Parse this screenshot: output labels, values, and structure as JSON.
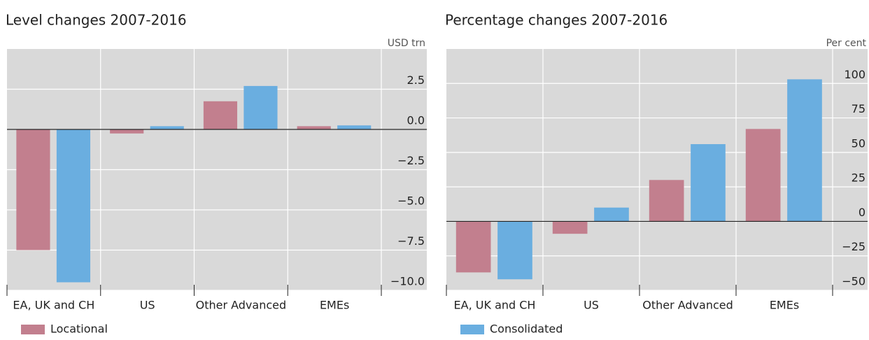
{
  "chart_data": [
    {
      "type": "bar",
      "title": "Level changes 2007-2016",
      "y_unit": "USD trn",
      "categories": [
        "EA, UK and CH",
        "US",
        "Other Advanced",
        "EMEs"
      ],
      "series": [
        {
          "name": "Locational",
          "color": "#c27f8e",
          "values": [
            -7.5,
            -0.25,
            1.75,
            0.2
          ]
        },
        {
          "name": "Consolidated",
          "color": "#6aaee0",
          "values": [
            -9.5,
            0.2,
            2.7,
            0.25
          ]
        }
      ],
      "ylim": [
        -10,
        5
      ],
      "yticks": [
        2.5,
        {
          "value": 0,
          "label": "0.0"
        },
        {
          "value": -2.5,
          "label": "−2.5"
        },
        {
          "value": -5,
          "label": "−5.0"
        },
        {
          "value": -7.5,
          "label": "−7.5"
        },
        {
          "value": -10,
          "label": "−10.0"
        }
      ],
      "grid": true,
      "legend_series": [
        0
      ]
    },
    {
      "type": "bar",
      "title": "Percentage changes 2007-2016",
      "y_unit": "Per cent",
      "categories": [
        "EA, UK and CH",
        "US",
        "Other Advanced",
        "EMEs"
      ],
      "series": [
        {
          "name": "Locational",
          "color": "#c27f8e",
          "values": [
            -37,
            -9,
            30,
            67
          ]
        },
        {
          "name": "Consolidated",
          "color": "#6aaee0",
          "values": [
            -42,
            10,
            56,
            103
          ]
        }
      ],
      "ylim": [
        -50,
        125
      ],
      "yticks": [
        100,
        75,
        50,
        25,
        0,
        {
          "value": -25,
          "label": "−25"
        },
        {
          "value": -50,
          "label": "−50"
        }
      ],
      "grid": true,
      "legend_series": [
        1
      ]
    }
  ]
}
